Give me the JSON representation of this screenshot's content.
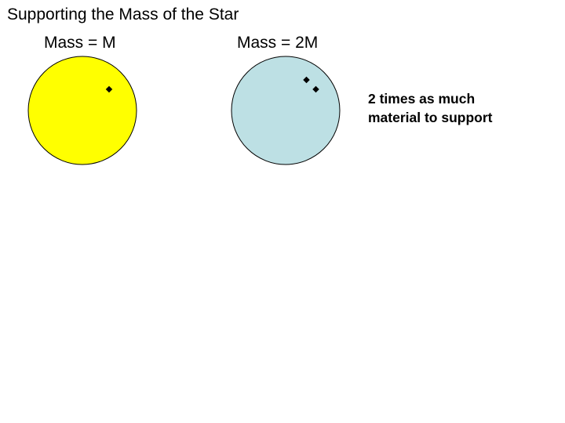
{
  "slide": {
    "title": "Supporting the Mass of the Star"
  },
  "stars": [
    {
      "label": "Mass = M",
      "fill": "#ffff00",
      "particles": 1
    },
    {
      "label": "Mass = 2M",
      "fill": "#bde0e4",
      "particles": 2
    }
  ],
  "note": {
    "lines": [
      "2 times as much",
      "material to support"
    ]
  },
  "colors": {
    "outline": "#000000",
    "particle": "#000000",
    "background": "#ffffff"
  }
}
